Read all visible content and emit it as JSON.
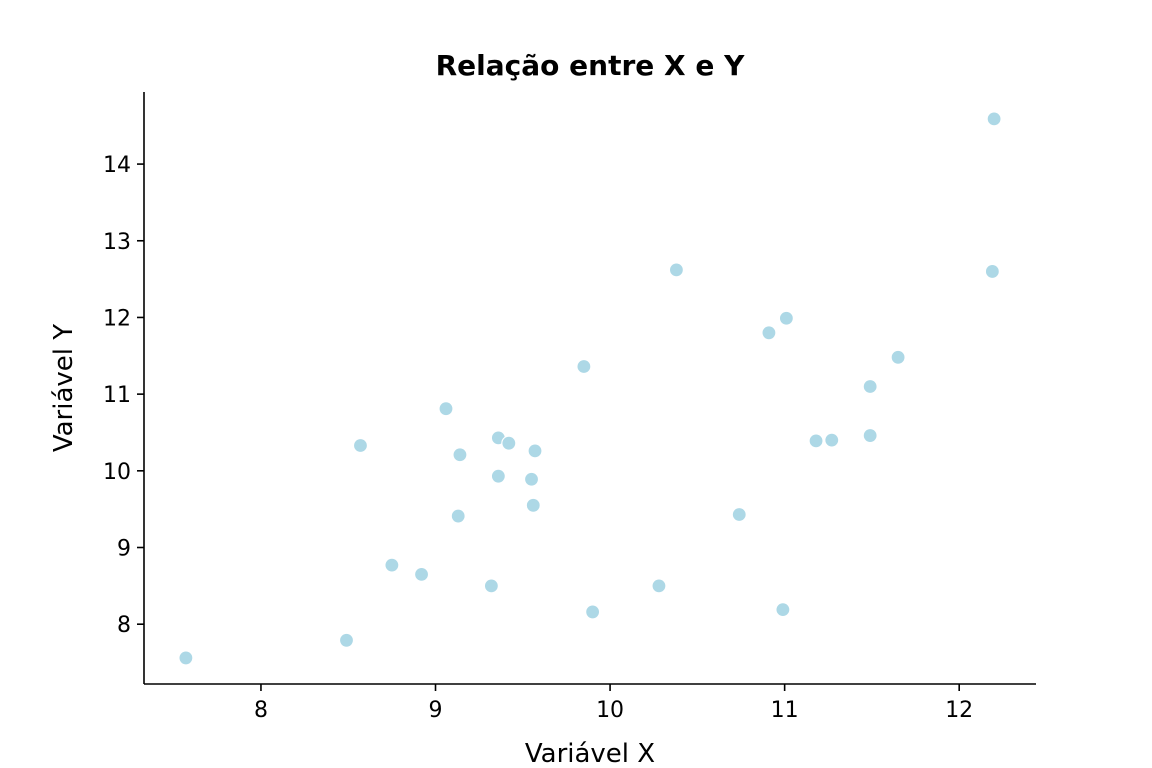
{
  "chart_data": {
    "type": "scatter",
    "title": "Relação entre X e Y",
    "xlabel": "Variável X",
    "ylabel": "Variável Y",
    "xlim": [
      7.33,
      12.44
    ],
    "ylim": [
      7.22,
      14.94
    ],
    "xticks": [
      8,
      9,
      10,
      11,
      12
    ],
    "yticks": [
      8,
      9,
      10,
      11,
      12,
      13,
      14
    ],
    "grid": false,
    "point_color": "#add8e6",
    "points": [
      {
        "x": 7.57,
        "y": 7.56
      },
      {
        "x": 8.49,
        "y": 7.79
      },
      {
        "x": 8.57,
        "y": 10.33
      },
      {
        "x": 8.75,
        "y": 8.77
      },
      {
        "x": 8.92,
        "y": 8.65
      },
      {
        "x": 9.06,
        "y": 10.81
      },
      {
        "x": 9.13,
        "y": 9.41
      },
      {
        "x": 9.14,
        "y": 10.21
      },
      {
        "x": 9.32,
        "y": 8.5
      },
      {
        "x": 9.36,
        "y": 10.43
      },
      {
        "x": 9.36,
        "y": 9.93
      },
      {
        "x": 9.42,
        "y": 10.36
      },
      {
        "x": 9.55,
        "y": 9.89
      },
      {
        "x": 9.56,
        "y": 9.55
      },
      {
        "x": 9.57,
        "y": 10.26
      },
      {
        "x": 9.85,
        "y": 11.36
      },
      {
        "x": 9.9,
        "y": 8.16
      },
      {
        "x": 10.28,
        "y": 8.5
      },
      {
        "x": 10.38,
        "y": 12.62
      },
      {
        "x": 10.74,
        "y": 9.43
      },
      {
        "x": 10.91,
        "y": 11.8
      },
      {
        "x": 10.99,
        "y": 8.19
      },
      {
        "x": 11.01,
        "y": 11.99
      },
      {
        "x": 11.18,
        "y": 10.39
      },
      {
        "x": 11.27,
        "y": 10.4
      },
      {
        "x": 11.49,
        "y": 11.1
      },
      {
        "x": 11.49,
        "y": 10.46
      },
      {
        "x": 11.65,
        "y": 11.48
      },
      {
        "x": 12.19,
        "y": 12.6
      },
      {
        "x": 12.2,
        "y": 14.59
      }
    ]
  }
}
